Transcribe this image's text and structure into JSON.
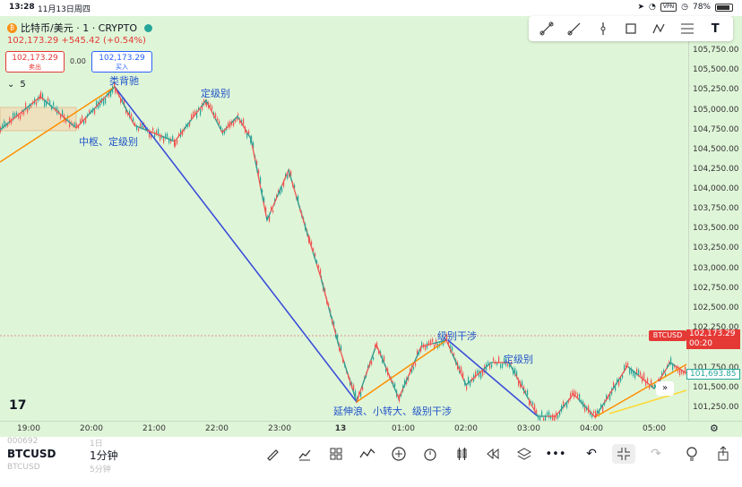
{
  "status_bar": {
    "time": "13:28",
    "date": "11月13日周四",
    "vpn": "VPN",
    "battery": "78%",
    "battery_level": 0.78
  },
  "header": {
    "symbol_title": "比特币/美元 · 1 · CRYPTO",
    "price_line": "102,173.29 +545.42 (+0.54%)",
    "sell_price": "102,173.29",
    "sell_label": "卖出",
    "spread": "0.00",
    "buy_price": "102,173.29",
    "buy_label": "买入",
    "indicator_count": "5"
  },
  "annotations": [
    "类背驰",
    "定级别",
    "中枢、定级别",
    "级别干涉",
    "定级别",
    "延伸浪、小转大、级别干涉"
  ],
  "price_axis": [
    "105,750.00",
    "105,500.00",
    "105,250.00",
    "105,000.00",
    "104,750.00",
    "104,500.00",
    "104,250.00",
    "104,000.00",
    "103,750.00",
    "103,500.00",
    "103,250.00",
    "103,000.00",
    "102,750.00",
    "102,500.00",
    "102,250.00",
    "101,750.00",
    "101,500.00",
    "101,250.00"
  ],
  "time_axis": [
    "19:00",
    "20:00",
    "21:00",
    "22:00",
    "23:00",
    "13",
    "01:00",
    "02:00",
    "03:00",
    "04:00",
    "05:00"
  ],
  "price_tags": {
    "symbol": "BTCUSD",
    "current_price": "102,173.29",
    "countdown": "00:20",
    "other_price": "101,693.85"
  },
  "bottom": {
    "symbol": "BTCUSD",
    "interval": "1分钟",
    "ghost_top_left": "000692",
    "ghost_top_right": "1日",
    "ghost_bottom_left": "BTCUSD",
    "ghost_bottom_right": "5分钟"
  },
  "colors": {
    "chart_bg": "#dff5d8",
    "up": "#26a69a",
    "down": "#ef5350",
    "blue_trend": "#3b4fd8",
    "orange_trend": "#ff8f00",
    "yellow_trend": "#fdd835",
    "annotation": "#2154c9"
  },
  "icons": {
    "toolbar": [
      "trend-line-icon",
      "ray-icon",
      "vertical-line-icon",
      "rectangle-icon",
      "path-icon",
      "fib-icon",
      "text-icon"
    ],
    "bottom": [
      "pencil-icon",
      "chart-type-icon",
      "grid-icon",
      "drawings-icon",
      "add-icon",
      "alert-icon",
      "candle-icon",
      "replay-icon",
      "layers-icon",
      "more-icon",
      "undo-icon",
      "collapse-icon",
      "redo-icon",
      "idea-icon",
      "share-icon"
    ]
  }
}
